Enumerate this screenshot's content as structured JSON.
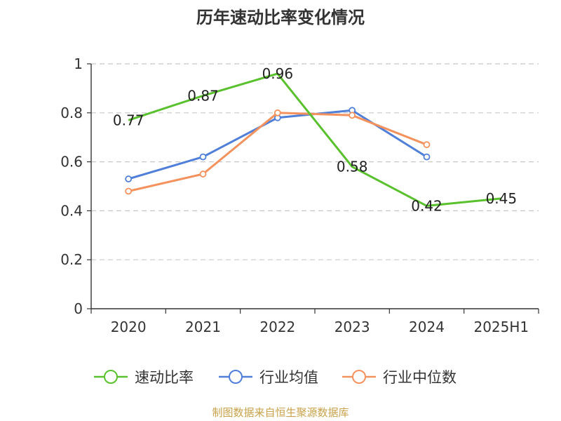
{
  "chart_data": {
    "type": "line",
    "title": "历年速动比率变化情况",
    "categories": [
      "2020",
      "2021",
      "2022",
      "2023",
      "2024",
      "2025H1"
    ],
    "y_ticks": [
      "0",
      "0.2",
      "0.4",
      "0.6",
      "0.8",
      "1"
    ],
    "ylim": [
      0,
      1
    ],
    "grid": true,
    "legend_position": "bottom",
    "series": [
      {
        "name": "速动比率",
        "color": "#5ac12e",
        "values": [
          0.77,
          0.87,
          0.96,
          0.58,
          0.42,
          0.45
        ],
        "labels": [
          "0.77",
          "0.87",
          "0.96",
          "0.58",
          "0.42",
          "0.45"
        ]
      },
      {
        "name": "行业均值",
        "color": "#4f7fd8",
        "values": [
          0.53,
          0.62,
          0.78,
          0.81,
          0.62,
          null
        ]
      },
      {
        "name": "行业中位数",
        "color": "#f4925e",
        "values": [
          0.48,
          0.55,
          0.8,
          0.79,
          0.67,
          null
        ]
      }
    ]
  },
  "footer": {
    "source": "制图数据来自恒生聚源数据库"
  }
}
